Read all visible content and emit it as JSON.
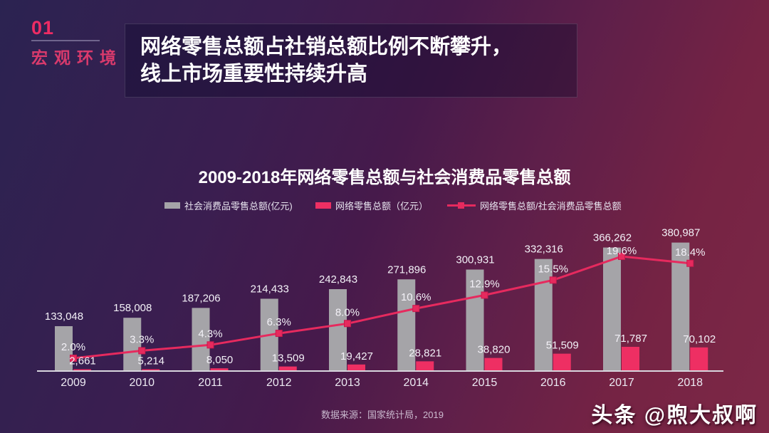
{
  "slide": {
    "section_number": "01",
    "section_label": "宏观环境",
    "headline": {
      "line1": "网络零售总额占社销总额比例不断攀升，",
      "line2": "线上市场重要性持续升高"
    },
    "source_note": "数据来源：国家统计局，2019",
    "watermark": "头条 @煦大叔啊"
  },
  "colors": {
    "accent_pink": "#ee2f63",
    "line_pink": "#e62a5e",
    "marker_stroke": "#c81a4e",
    "bar_gray": "#a5a4a8",
    "axis_line": "#d8d6de",
    "headline_text": "#ffffff",
    "bg_gradient_start": "#2b2351",
    "bg_gradient_mid": "#461a4b",
    "bg_gradient_end": "#7d2846"
  },
  "chart_data": {
    "type": "bar",
    "title": "2009-2018年网络零售总额与社会消费品零售总额",
    "categories": [
      "2009",
      "2010",
      "2011",
      "2012",
      "2013",
      "2014",
      "2015",
      "2016",
      "2017",
      "2018"
    ],
    "series": [
      {
        "name": "社会消费品零售总额(亿元)",
        "kind": "bar",
        "color": "#a5a4a8",
        "values": [
          133048,
          158008,
          187206,
          214433,
          242843,
          271896,
          300931,
          332316,
          366262,
          380987
        ],
        "labels": [
          "133,048",
          "158,008",
          "187,206",
          "214,433",
          "242,843",
          "271,896",
          "300,931",
          "332,316",
          "366,262",
          "380,987"
        ]
      },
      {
        "name": "网络零售总额（亿元）",
        "kind": "bar",
        "color": "#ee2f63",
        "values": [
          2661,
          5214,
          8050,
          13509,
          19427,
          28821,
          38820,
          51509,
          71787,
          70102
        ],
        "labels": [
          "2,661",
          "5,214",
          "8,050",
          "13,509",
          "19,427",
          "28,821",
          "38,820",
          "51,509",
          "71,787",
          "70,102"
        ]
      },
      {
        "name": "网络零售总额/社会消费品零售总额",
        "kind": "line",
        "color": "#e62a5e",
        "values": [
          2.0,
          3.3,
          4.3,
          6.3,
          8.0,
          10.6,
          12.9,
          15.5,
          19.6,
          18.4
        ],
        "labels": [
          "2.0%",
          "3.3%",
          "4.3%",
          "6.3%",
          "8.0%",
          "10.6%",
          "12.9%",
          "15.5%",
          "19.6%",
          "18.4%"
        ]
      }
    ],
    "value_axis": {
      "min": 0,
      "max": 400000,
      "visible": false
    },
    "percent_axis": {
      "min": 0,
      "max": 22,
      "visible": false
    },
    "legend_position": "top",
    "grid": false
  }
}
